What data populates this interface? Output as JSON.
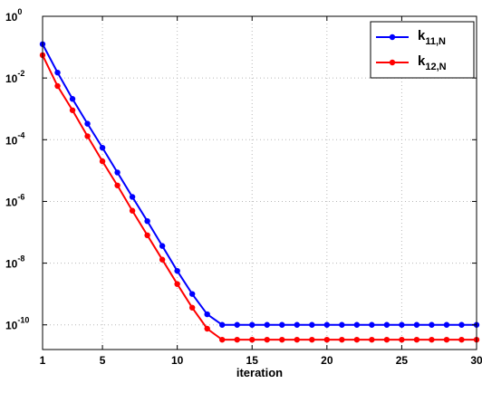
{
  "chart_data": {
    "type": "line",
    "xlabel": "iteration",
    "ylabel": "",
    "title": "",
    "xlim": [
      1,
      30
    ],
    "ylim_log10": [
      -10.8,
      0
    ],
    "yscale": "log",
    "grid": true,
    "legend_position": "top-right",
    "x_ticks": [
      {
        "value": 1,
        "label": "1"
      },
      {
        "value": 5,
        "label": "5"
      },
      {
        "value": 10,
        "label": "10"
      },
      {
        "value": 15,
        "label": "15"
      },
      {
        "value": 20,
        "label": "20"
      },
      {
        "value": 25,
        "label": "25"
      },
      {
        "value": 30,
        "label": "30"
      }
    ],
    "y_ticks": [
      {
        "exp": 0,
        "base": "10",
        "sup": "0"
      },
      {
        "exp": -2,
        "base": "10",
        "sup": "-2"
      },
      {
        "exp": -4,
        "base": "10",
        "sup": "-4"
      },
      {
        "exp": -6,
        "base": "10",
        "sup": "-6"
      },
      {
        "exp": -8,
        "base": "10",
        "sup": "-8"
      },
      {
        "exp": -10,
        "base": "10",
        "sup": "-10"
      }
    ],
    "x": [
      1,
      2,
      3,
      4,
      5,
      6,
      7,
      8,
      9,
      10,
      11,
      12,
      13,
      14,
      15,
      16,
      17,
      18,
      19,
      20,
      21,
      22,
      23,
      24,
      25,
      26,
      27,
      28,
      29,
      30
    ],
    "series": [
      {
        "name": "k",
        "name_sub": "11,N",
        "color": "#0000ff",
        "values": [
          0.125,
          0.015,
          0.0021,
          0.00033,
          5.5e-05,
          8.7e-06,
          1.4e-06,
          2.3e-07,
          3.6e-08,
          5.6e-09,
          1e-09,
          2.2e-10,
          1e-10,
          1e-10,
          1e-10,
          1e-10,
          1e-10,
          1e-10,
          1e-10,
          1e-10,
          1e-10,
          1e-10,
          1e-10,
          1e-10,
          1e-10,
          1e-10,
          1e-10,
          1e-10,
          1e-10,
          1e-10
        ]
      },
      {
        "name": "k",
        "name_sub": "12,N",
        "color": "#ff0000",
        "values": [
          0.055,
          0.0055,
          0.0009,
          0.00013,
          2e-05,
          3.3e-06,
          5e-07,
          8e-08,
          1.3e-08,
          2.1e-09,
          3.6e-10,
          7.5e-11,
          3.3e-11,
          3.3e-11,
          3.3e-11,
          3.3e-11,
          3.3e-11,
          3.3e-11,
          3.3e-11,
          3.3e-11,
          3.3e-11,
          3.3e-11,
          3.3e-11,
          3.3e-11,
          3.3e-11,
          3.3e-11,
          3.3e-11,
          3.3e-11,
          3.3e-11,
          3.3e-11
        ]
      }
    ]
  }
}
